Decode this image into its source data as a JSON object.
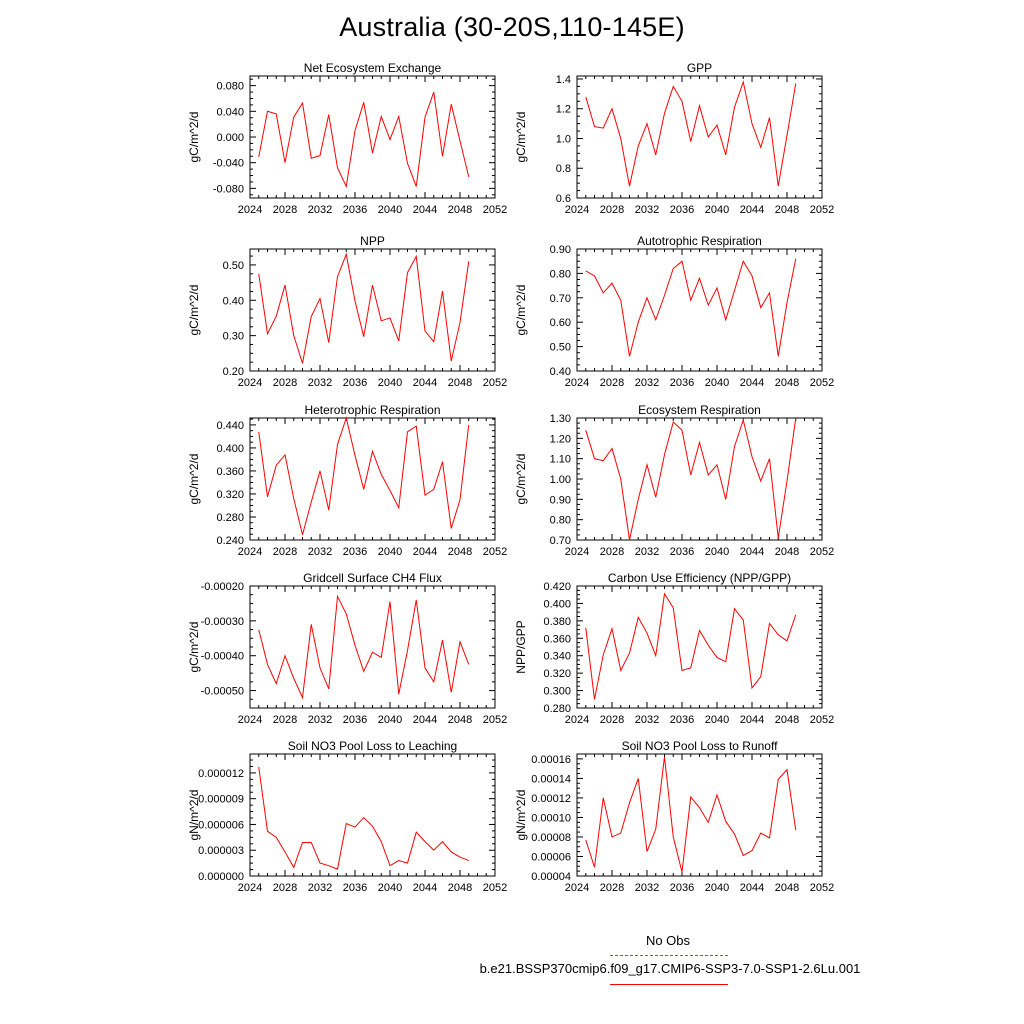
{
  "figure": {
    "title": "Australia (30-20S,110-145E)"
  },
  "colors": {
    "model_line": "#ff0000",
    "obs_line": "#5a5ad8",
    "axis": "#000000"
  },
  "legend": {
    "obs_label": "No Obs",
    "model_label": "b.e21.BSSP370cmip6.f09_g17.CMIP6-SSP3-7.0-SSP1-2.6Lu.001"
  },
  "chart_data": [
    {
      "type": "line",
      "title": "Net Ecosystem Exchange",
      "ylabel": "gC/m^2/d",
      "xlim": [
        2024,
        2052
      ],
      "xticks": [
        2024,
        2028,
        2032,
        2036,
        2040,
        2044,
        2048,
        2052
      ],
      "xtick_labels": [
        "2024",
        "2028",
        "2032",
        "2036",
        "2040",
        "2044",
        "2048",
        "2052"
      ],
      "ylim": [
        -0.095,
        0.095
      ],
      "yticks": [
        -0.08,
        -0.04,
        0.0,
        0.04,
        0.08
      ],
      "ytick_labels": [
        "-0.080",
        "-0.040",
        "0.000",
        "0.040",
        "0.080"
      ],
      "minor_yticks": 4,
      "x": [
        2025,
        2026,
        2027,
        2028,
        2029,
        2030,
        2031,
        2032,
        2033,
        2034,
        2035,
        2036,
        2037,
        2038,
        2039,
        2040,
        2041,
        2042,
        2043,
        2044,
        2045,
        2046,
        2047,
        2048,
        2049
      ],
      "series": [
        {
          "values": [
            -0.031,
            0.04,
            0.036,
            -0.04,
            0.031,
            0.053,
            -0.033,
            -0.029,
            0.035,
            -0.048,
            -0.077,
            0.01,
            0.054,
            -0.025,
            0.032,
            -0.004,
            0.032,
            -0.041,
            -0.077,
            0.031,
            0.07,
            -0.03,
            0.051,
            -0.006,
            -0.062
          ]
        }
      ]
    },
    {
      "type": "line",
      "title": "GPP",
      "ylabel": "gC/m^2/d",
      "xlim": [
        2024,
        2052
      ],
      "xticks": [
        2024,
        2028,
        2032,
        2036,
        2040,
        2044,
        2048,
        2052
      ],
      "xtick_labels": [
        "2024",
        "2028",
        "2032",
        "2036",
        "2040",
        "2044",
        "2048",
        "2052"
      ],
      "ylim": [
        0.6,
        1.42
      ],
      "yticks": [
        0.6,
        0.8,
        1.0,
        1.2,
        1.4
      ],
      "ytick_labels": [
        "0.6",
        "0.8",
        "1.0",
        "1.2",
        "1.4"
      ],
      "minor_yticks": 4,
      "x": [
        2025,
        2026,
        2027,
        2028,
        2029,
        2030,
        2031,
        2032,
        2033,
        2034,
        2035,
        2036,
        2037,
        2038,
        2039,
        2040,
        2041,
        2042,
        2043,
        2044,
        2045,
        2046,
        2047,
        2048,
        2049
      ],
      "series": [
        {
          "values": [
            1.28,
            1.08,
            1.07,
            1.2,
            1.0,
            0.68,
            0.95,
            1.1,
            0.89,
            1.17,
            1.35,
            1.25,
            0.98,
            1.22,
            1.01,
            1.09,
            0.89,
            1.21,
            1.38,
            1.1,
            0.94,
            1.14,
            0.68,
            1.02,
            1.37
          ]
        }
      ]
    },
    {
      "type": "line",
      "title": "NPP",
      "ylabel": "gC/m^2/d",
      "xlim": [
        2024,
        2052
      ],
      "xticks": [
        2024,
        2028,
        2032,
        2036,
        2040,
        2044,
        2048,
        2052
      ],
      "xtick_labels": [
        "2024",
        "2028",
        "2032",
        "2036",
        "2040",
        "2044",
        "2048",
        "2052"
      ],
      "ylim": [
        0.2,
        0.545
      ],
      "yticks": [
        0.2,
        0.3,
        0.4,
        0.5
      ],
      "ytick_labels": [
        "0.20",
        "0.30",
        "0.40",
        "0.50"
      ],
      "minor_yticks": 4,
      "x": [
        2025,
        2026,
        2027,
        2028,
        2029,
        2030,
        2031,
        2032,
        2033,
        2034,
        2035,
        2036,
        2037,
        2038,
        2039,
        2040,
        2041,
        2042,
        2043,
        2044,
        2045,
        2046,
        2047,
        2048,
        2049
      ],
      "series": [
        {
          "values": [
            0.475,
            0.305,
            0.355,
            0.443,
            0.3,
            0.222,
            0.354,
            0.405,
            0.28,
            0.467,
            0.53,
            0.398,
            0.297,
            0.443,
            0.342,
            0.35,
            0.285,
            0.478,
            0.524,
            0.313,
            0.283,
            0.426,
            0.228,
            0.337,
            0.51
          ]
        }
      ]
    },
    {
      "type": "line",
      "title": "Autotrophic Respiration",
      "ylabel": "gC/m^2/d",
      "xlim": [
        2024,
        2052
      ],
      "xticks": [
        2024,
        2028,
        2032,
        2036,
        2040,
        2044,
        2048,
        2052
      ],
      "xtick_labels": [
        "2024",
        "2028",
        "2032",
        "2036",
        "2040",
        "2044",
        "2048",
        "2052"
      ],
      "ylim": [
        0.4,
        0.9
      ],
      "yticks": [
        0.4,
        0.5,
        0.6,
        0.7,
        0.8,
        0.9
      ],
      "ytick_labels": [
        "0.40",
        "0.50",
        "0.60",
        "0.70",
        "0.80",
        "0.90"
      ],
      "minor_yticks": 4,
      "x": [
        2025,
        2026,
        2027,
        2028,
        2029,
        2030,
        2031,
        2032,
        2033,
        2034,
        2035,
        2036,
        2037,
        2038,
        2039,
        2040,
        2041,
        2042,
        2043,
        2044,
        2045,
        2046,
        2047,
        2048,
        2049
      ],
      "series": [
        {
          "values": [
            0.81,
            0.79,
            0.72,
            0.76,
            0.69,
            0.46,
            0.6,
            0.7,
            0.61,
            0.71,
            0.82,
            0.85,
            0.69,
            0.78,
            0.67,
            0.74,
            0.61,
            0.73,
            0.85,
            0.79,
            0.66,
            0.72,
            0.46,
            0.68,
            0.86
          ]
        }
      ]
    },
    {
      "type": "line",
      "title": "Heterotrophic Respiration",
      "ylabel": "gC/m^2/d",
      "xlim": [
        2024,
        2052
      ],
      "xticks": [
        2024,
        2028,
        2032,
        2036,
        2040,
        2044,
        2048,
        2052
      ],
      "xtick_labels": [
        "2024",
        "2028",
        "2032",
        "2036",
        "2040",
        "2044",
        "2048",
        "2052"
      ],
      "ylim": [
        0.24,
        0.452
      ],
      "yticks": [
        0.24,
        0.28,
        0.32,
        0.36,
        0.4,
        0.44
      ],
      "ytick_labels": [
        "0.240",
        "0.280",
        "0.320",
        "0.360",
        "0.400",
        "0.440"
      ],
      "minor_yticks": 4,
      "x": [
        2025,
        2026,
        2027,
        2028,
        2029,
        2030,
        2031,
        2032,
        2033,
        2034,
        2035,
        2036,
        2037,
        2038,
        2039,
        2040,
        2041,
        2042,
        2043,
        2044,
        2045,
        2046,
        2047,
        2048,
        2049
      ],
      "series": [
        {
          "values": [
            0.428,
            0.315,
            0.37,
            0.388,
            0.312,
            0.249,
            0.306,
            0.36,
            0.292,
            0.406,
            0.452,
            0.387,
            0.328,
            0.394,
            0.354,
            0.326,
            0.296,
            0.428,
            0.438,
            0.318,
            0.328,
            0.376,
            0.26,
            0.31,
            0.44
          ]
        }
      ]
    },
    {
      "type": "line",
      "title": "Ecosystem Respiration",
      "ylabel": "gC/m^2/d",
      "xlim": [
        2024,
        2052
      ],
      "xticks": [
        2024,
        2028,
        2032,
        2036,
        2040,
        2044,
        2048,
        2052
      ],
      "xtick_labels": [
        "2024",
        "2028",
        "2032",
        "2036",
        "2040",
        "2044",
        "2048",
        "2052"
      ],
      "ylim": [
        0.7,
        1.3
      ],
      "yticks": [
        0.7,
        0.8,
        0.9,
        1.0,
        1.1,
        1.2,
        1.3
      ],
      "ytick_labels": [
        "0.70",
        "0.80",
        "0.90",
        "1.00",
        "1.10",
        "1.20",
        "1.30"
      ],
      "minor_yticks": 4,
      "x": [
        2025,
        2026,
        2027,
        2028,
        2029,
        2030,
        2031,
        2032,
        2033,
        2034,
        2035,
        2036,
        2037,
        2038,
        2039,
        2040,
        2041,
        2042,
        2043,
        2044,
        2045,
        2046,
        2047,
        2048,
        2049
      ],
      "series": [
        {
          "values": [
            1.24,
            1.1,
            1.09,
            1.15,
            1.0,
            0.7,
            0.9,
            1.07,
            0.91,
            1.12,
            1.28,
            1.24,
            1.02,
            1.18,
            1.02,
            1.07,
            0.9,
            1.16,
            1.29,
            1.11,
            0.99,
            1.1,
            0.71,
            0.99,
            1.3
          ]
        }
      ]
    },
    {
      "type": "line",
      "title": "Gridcell Surface CH4 Flux",
      "ylabel": "gC/m^2/d",
      "xlim": [
        2024,
        2052
      ],
      "xticks": [
        2024,
        2028,
        2032,
        2036,
        2040,
        2044,
        2048,
        2052
      ],
      "xtick_labels": [
        "2024",
        "2028",
        "2032",
        "2036",
        "2040",
        "2044",
        "2048",
        "2052"
      ],
      "ylim": [
        -0.00055,
        -0.0002
      ],
      "yticks": [
        -0.0005,
        -0.0004,
        -0.0003,
        -0.0002
      ],
      "ytick_labels": [
        "-0.00050",
        "-0.00040",
        "-0.00030",
        "-0.00020"
      ],
      "minor_yticks": 4,
      "x": [
        2025,
        2026,
        2027,
        2028,
        2029,
        2030,
        2031,
        2032,
        2033,
        2034,
        2035,
        2036,
        2037,
        2038,
        2039,
        2040,
        2041,
        2042,
        2043,
        2044,
        2045,
        2046,
        2047,
        2048,
        2049
      ],
      "series": [
        {
          "values": [
            -0.000325,
            -0.000425,
            -0.00048,
            -0.0004,
            -0.000465,
            -0.00052,
            -0.00031,
            -0.000435,
            -0.000495,
            -0.00023,
            -0.00028,
            -0.00037,
            -0.000445,
            -0.00039,
            -0.000405,
            -0.000245,
            -0.00051,
            -0.000385,
            -0.00024,
            -0.000435,
            -0.000475,
            -0.000355,
            -0.000505,
            -0.00036,
            -0.000425
          ]
        }
      ]
    },
    {
      "type": "line",
      "title": "Carbon Use Efficiency (NPP/GPP)",
      "ylabel": "NPP/GPP",
      "xlim": [
        2024,
        2052
      ],
      "xticks": [
        2024,
        2028,
        2032,
        2036,
        2040,
        2044,
        2048,
        2052
      ],
      "xtick_labels": [
        "2024",
        "2028",
        "2032",
        "2036",
        "2040",
        "2044",
        "2048",
        "2052"
      ],
      "ylim": [
        0.28,
        0.42
      ],
      "yticks": [
        0.28,
        0.3,
        0.32,
        0.34,
        0.36,
        0.38,
        0.4,
        0.42
      ],
      "ytick_labels": [
        "0.280",
        "0.300",
        "0.320",
        "0.340",
        "0.360",
        "0.380",
        "0.400",
        "0.420"
      ],
      "minor_yticks": 4,
      "x": [
        2025,
        2026,
        2027,
        2028,
        2029,
        2030,
        2031,
        2032,
        2033,
        2034,
        2035,
        2036,
        2037,
        2038,
        2039,
        2040,
        2041,
        2042,
        2043,
        2044,
        2045,
        2046,
        2047,
        2048,
        2049
      ],
      "series": [
        {
          "values": [
            0.372,
            0.29,
            0.341,
            0.371,
            0.323,
            0.343,
            0.384,
            0.366,
            0.34,
            0.411,
            0.395,
            0.323,
            0.326,
            0.369,
            0.352,
            0.338,
            0.333,
            0.394,
            0.381,
            0.303,
            0.316,
            0.377,
            0.364,
            0.357,
            0.387
          ]
        }
      ]
    },
    {
      "type": "line",
      "title": "Soil NO3 Pool Loss to Leaching",
      "ylabel": "gN/m^2/d",
      "xlim": [
        2024,
        2052
      ],
      "xticks": [
        2024,
        2028,
        2032,
        2036,
        2040,
        2044,
        2048,
        2052
      ],
      "xtick_labels": [
        "2024",
        "2028",
        "2032",
        "2036",
        "2040",
        "2044",
        "2048",
        "2052"
      ],
      "ylim": [
        0.0,
        1.42e-05
      ],
      "yticks": [
        0.0,
        3e-06,
        6e-06,
        9e-06,
        1.2e-05
      ],
      "ytick_labels": [
        "0.000000",
        "0.000003",
        "0.000006",
        "0.000009",
        "0.000012"
      ],
      "minor_yticks": 4,
      "x": [
        2025,
        2026,
        2027,
        2028,
        2029,
        2030,
        2031,
        2032,
        2033,
        2034,
        2035,
        2036,
        2037,
        2038,
        2039,
        2040,
        2041,
        2042,
        2043,
        2044,
        2045,
        2046,
        2047,
        2048,
        2049
      ],
      "series": [
        {
          "values": [
            1.27e-05,
            5.2e-06,
            4.5e-06,
            2.8e-06,
            1e-06,
            3.9e-06,
            3.9e-06,
            1.5e-06,
            1.2e-06,
            8e-07,
            6.1e-06,
            5.7e-06,
            6.8e-06,
            5.8e-06,
            4e-06,
            1.2e-06,
            1.8e-06,
            1.5e-06,
            5.1e-06,
            4e-06,
            3e-06,
            4e-06,
            2.8e-06,
            2.2e-06,
            1.8e-06
          ]
        }
      ]
    },
    {
      "type": "line",
      "title": "Soil NO3 Pool Loss to Runoff",
      "ylabel": "gN/m^2/d",
      "xlim": [
        2024,
        2052
      ],
      "xticks": [
        2024,
        2028,
        2032,
        2036,
        2040,
        2044,
        2048,
        2052
      ],
      "xtick_labels": [
        "2024",
        "2028",
        "2032",
        "2036",
        "2040",
        "2044",
        "2048",
        "2052"
      ],
      "ylim": [
        4e-05,
        0.000165
      ],
      "yticks": [
        4e-05,
        6e-05,
        8e-05,
        0.0001,
        0.00012,
        0.00014,
        0.00016
      ],
      "ytick_labels": [
        "0.00004",
        "0.00006",
        "0.00008",
        "0.00010",
        "0.00012",
        "0.00014",
        "0.00016"
      ],
      "minor_yticks": 4,
      "x": [
        2025,
        2026,
        2027,
        2028,
        2029,
        2030,
        2031,
        2032,
        2033,
        2034,
        2035,
        2036,
        2037,
        2038,
        2039,
        2040,
        2041,
        2042,
        2043,
        2044,
        2045,
        2046,
        2047,
        2048,
        2049
      ],
      "series": [
        {
          "values": [
            7.7e-05,
            4.9e-05,
            0.00012,
            8e-05,
            8.4e-05,
            0.000115,
            0.00014,
            6.5e-05,
            8.8e-05,
            0.000162,
            8e-05,
            4.4e-05,
            0.000121,
            0.00011,
            9.5e-05,
            0.000123,
            9.6e-05,
            8.3e-05,
            6.1e-05,
            6.6e-05,
            8.4e-05,
            7.9e-05,
            0.000139,
            0.000149,
            8.7e-05
          ]
        }
      ]
    }
  ]
}
